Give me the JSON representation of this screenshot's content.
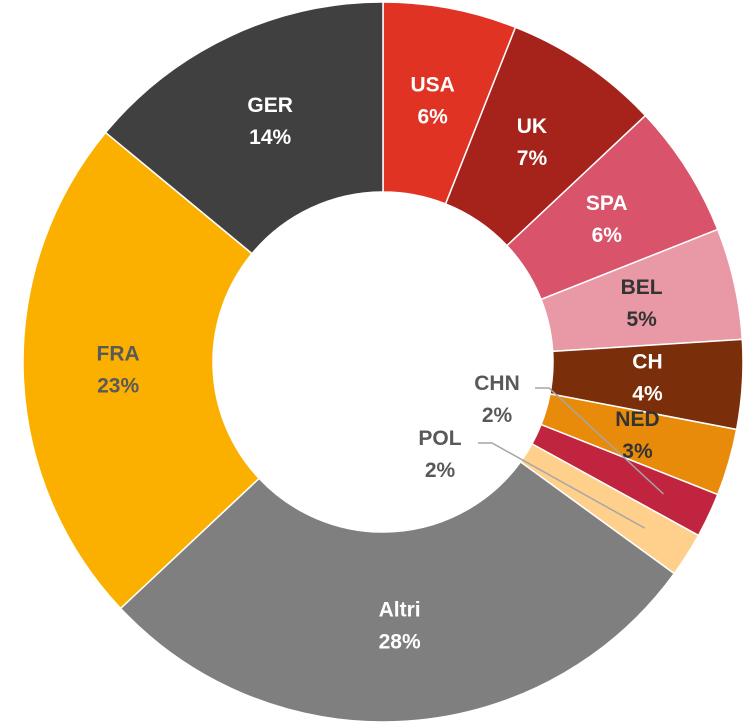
{
  "chart_data": {
    "type": "pie",
    "categories": [
      "USA",
      "UK",
      "SPA",
      "BEL",
      "CH",
      "NED",
      "CHN",
      "POL",
      "Altri",
      "FRA",
      "GER"
    ],
    "values": [
      6,
      7,
      6,
      5,
      4,
      3,
      2,
      2,
      28,
      23,
      14
    ],
    "value_labels": [
      "6%",
      "7%",
      "6%",
      "5%",
      "4%",
      "3%",
      "2%",
      "2%",
      "28%",
      "23%",
      "14%"
    ],
    "colors": [
      "#e03323",
      "#a5231a",
      "#d9536b",
      "#e899a5",
      "#7a2e0a",
      "#e88a0a",
      "#c0243e",
      "#ffd08c",
      "#7f7f7f",
      "#fbb000",
      "#404040"
    ]
  }
}
